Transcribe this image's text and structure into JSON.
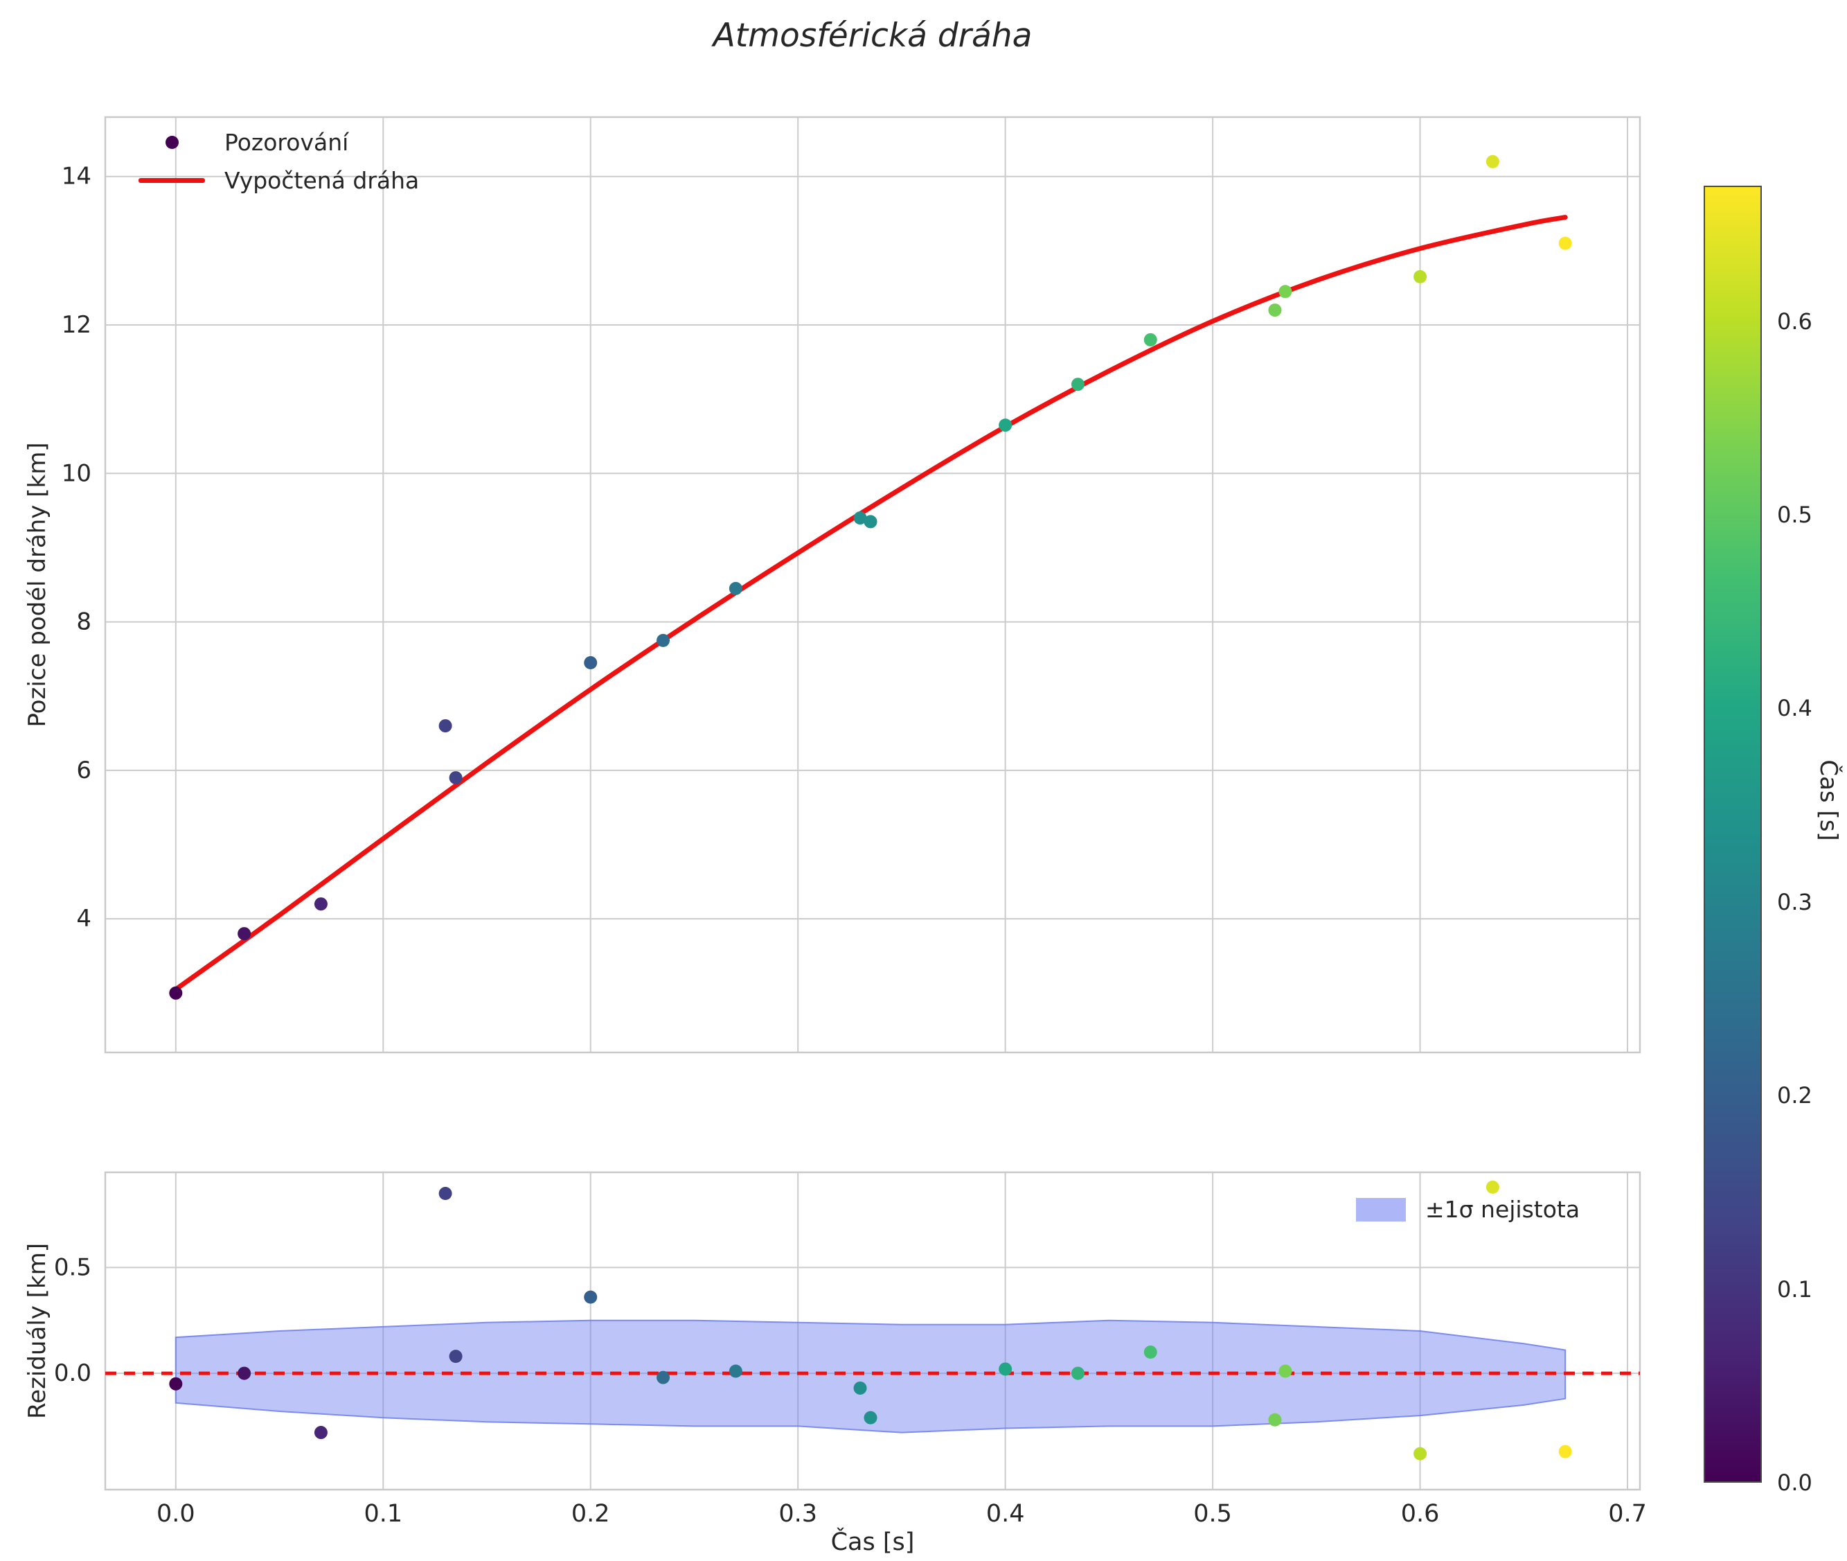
{
  "title": "Atmosférická dráha",
  "colors": {
    "curve_red": "#ee1111",
    "band_fill": "#6b7cf0",
    "band_alpha": 0.45,
    "band_edge": "#6b7cf0",
    "grid": "#cccccc",
    "spine": "#c9c9c9",
    "tick_label": "#262626",
    "viridis_stops": [
      "#440154",
      "#482475",
      "#414487",
      "#355f8d",
      "#2a788e",
      "#21918c",
      "#22a884",
      "#44bf70",
      "#7ad151",
      "#bddf26",
      "#fde725"
    ]
  },
  "chart_data": [
    {
      "type": "scatter",
      "title": "Atmosférická dráha",
      "ylabel": "Pozice podél dráhy [km]",
      "xlim": [
        -0.034,
        0.706
      ],
      "ylim": [
        2.2,
        14.8
      ],
      "xticks": [
        0,
        0.1,
        0.2,
        0.3,
        0.4,
        0.5,
        0.6,
        0.7
      ],
      "yticks": [
        4,
        6,
        8,
        10,
        12,
        14
      ],
      "ytick_labels": [
        "4",
        "6",
        "8",
        "10",
        "12",
        "14"
      ],
      "grid": true,
      "legend_observations": "Pozorování",
      "legend_curve": "Vypočtená dráha",
      "observations": {
        "color_by": "t",
        "t": [
          0.0,
          0.033,
          0.07,
          0.13,
          0.135,
          0.2,
          0.235,
          0.27,
          0.33,
          0.335,
          0.4,
          0.435,
          0.47,
          0.53,
          0.535,
          0.6,
          0.635,
          0.67
        ],
        "s": [
          3.0,
          3.8,
          4.2,
          6.6,
          5.9,
          7.45,
          7.75,
          8.45,
          9.4,
          9.35,
          10.65,
          11.2,
          11.8,
          12.2,
          12.45,
          12.65,
          14.2,
          13.1
        ]
      },
      "curve": {
        "t": [
          0.0,
          0.05,
          0.1,
          0.15,
          0.2,
          0.25,
          0.3,
          0.35,
          0.4,
          0.45,
          0.5,
          0.55,
          0.6,
          0.65,
          0.67
        ],
        "s": [
          3.05,
          4.05,
          5.08,
          6.1,
          7.09,
          8.03,
          8.93,
          9.8,
          10.63,
          11.38,
          12.05,
          12.6,
          13.03,
          13.35,
          13.45
        ]
      }
    },
    {
      "type": "scatter",
      "ylabel": "Reziduály [km]",
      "xlabel": "Čas [s]",
      "xlim": [
        -0.034,
        0.706
      ],
      "ylim": [
        -0.55,
        0.95
      ],
      "xticks": [
        0,
        0.1,
        0.2,
        0.3,
        0.4,
        0.5,
        0.6,
        0.7
      ],
      "xtick_labels": [
        "0.0",
        "0.1",
        "0.2",
        "0.3",
        "0.4",
        "0.5",
        "0.6",
        "0.7"
      ],
      "yticks": [
        0,
        0.5
      ],
      "ytick_labels": [
        "0.0",
        "0.5"
      ],
      "grid": true,
      "legend_band": "±1σ nejistota",
      "zero_line": 0,
      "residuals": {
        "t": [
          0.0,
          0.033,
          0.07,
          0.13,
          0.135,
          0.2,
          0.235,
          0.27,
          0.33,
          0.335,
          0.4,
          0.435,
          0.47,
          0.53,
          0.535,
          0.6,
          0.635,
          0.67
        ],
        "r": [
          -0.05,
          0.0,
          -0.28,
          0.85,
          0.08,
          0.36,
          -0.02,
          0.01,
          -0.07,
          -0.21,
          0.02,
          0.0,
          0.1,
          -0.22,
          0.01,
          -0.38,
          0.88,
          -0.37
        ]
      },
      "band": {
        "t": [
          0.0,
          0.05,
          0.1,
          0.15,
          0.2,
          0.25,
          0.3,
          0.35,
          0.4,
          0.45,
          0.5,
          0.55,
          0.6,
          0.65,
          0.67
        ],
        "hi": [
          0.17,
          0.2,
          0.22,
          0.24,
          0.25,
          0.25,
          0.24,
          0.23,
          0.23,
          0.25,
          0.24,
          0.22,
          0.2,
          0.14,
          0.11
        ],
        "lo": [
          -0.14,
          -0.18,
          -0.21,
          -0.23,
          -0.24,
          -0.25,
          -0.25,
          -0.28,
          -0.26,
          -0.25,
          -0.25,
          -0.23,
          -0.2,
          -0.15,
          -0.12
        ]
      }
    }
  ],
  "colorbar": {
    "label": "Čas [s]",
    "vmin": 0.0,
    "vmax": 0.67,
    "ticks": [
      0,
      0.1,
      0.2,
      0.3,
      0.4,
      0.5,
      0.6
    ],
    "tick_labels": [
      "0.0",
      "0.1",
      "0.2",
      "0.3",
      "0.4",
      "0.5",
      "0.6"
    ]
  }
}
